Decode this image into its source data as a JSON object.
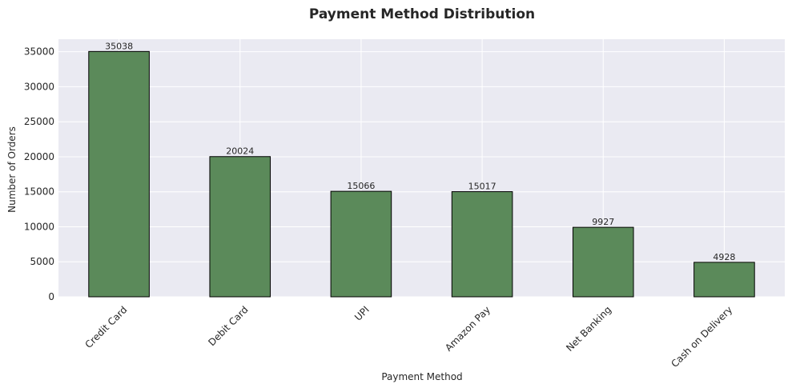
{
  "chart_data": {
    "type": "bar",
    "title": "Payment Method Distribution",
    "xlabel": "Payment Method",
    "ylabel": "Number of Orders",
    "categories": [
      "Credit Card",
      "Debit Card",
      "UPI",
      "Amazon Pay",
      "Net Banking",
      "Cash on Delivery"
    ],
    "values": [
      35038,
      20024,
      15066,
      15017,
      9927,
      4928
    ],
    "data_labels": [
      "35038",
      "20024",
      "15066",
      "15017",
      "9927",
      "4928"
    ],
    "ylim": [
      0,
      36791
    ],
    "yticks": [
      0,
      5000,
      10000,
      15000,
      20000,
      25000,
      30000,
      35000
    ],
    "grid": true,
    "bar_color": "#5b8a5a",
    "bar_edge_color": "#000000",
    "background_color": "#eaeaf2",
    "grid_color": "#ffffff"
  }
}
